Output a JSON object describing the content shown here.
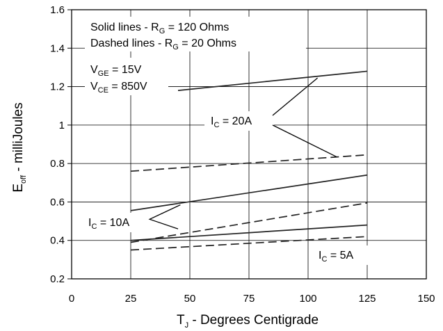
{
  "chart_data": {
    "type": "line",
    "xlabel": {
      "main": "T",
      "sub": "J",
      "rest": " - Degrees Centigrade"
    },
    "ylabel": {
      "main": "E",
      "sub": "off",
      "rest": " - milliJoules"
    },
    "xlim": [
      0,
      150
    ],
    "ylim": [
      0.2,
      1.6
    ],
    "x_ticks": [
      "0",
      "25",
      "50",
      "75",
      "100",
      "125",
      "150"
    ],
    "y_ticks": [
      "0.2",
      "0.4",
      "0.6",
      "0.8",
      "1",
      "1.2",
      "1.4",
      "1.6"
    ],
    "grid": true,
    "notes": {
      "solid": {
        "pre": "Solid lines - R",
        "sub": "G",
        "post": " = 120 Ohms"
      },
      "dashed": {
        "pre": "Dashed lines - R",
        "sub": "G",
        "post": " = 20 Ohms"
      },
      "vge": {
        "pre": "V",
        "sub": "GE",
        "post": " = 15V"
      },
      "vce": {
        "pre": "V",
        "sub": "CE",
        "post": " = 850V"
      }
    },
    "annotations": {
      "ic20": {
        "pre": "I",
        "sub": "C",
        "post": " = 20A"
      },
      "ic10": {
        "pre": "I",
        "sub": "C",
        "post": " = 10A"
      },
      "ic5": {
        "pre": "I",
        "sub": "C",
        "post": " = 5A"
      }
    },
    "series": [
      {
        "style": "solid",
        "x": [
          45,
          125
        ],
        "y": [
          1.18,
          1.28
        ]
      },
      {
        "style": "dashed",
        "x": [
          25,
          125
        ],
        "y": [
          0.76,
          0.845
        ]
      },
      {
        "style": "solid",
        "x": [
          25,
          125
        ],
        "y": [
          0.555,
          0.74
        ]
      },
      {
        "style": "dashed",
        "x": [
          25,
          125
        ],
        "y": [
          0.39,
          0.595
        ]
      },
      {
        "style": "solid",
        "x": [
          25,
          125
        ],
        "y": [
          0.4,
          0.48
        ]
      },
      {
        "style": "dashed",
        "x": [
          25,
          125
        ],
        "y": [
          0.35,
          0.42
        ]
      }
    ]
  }
}
